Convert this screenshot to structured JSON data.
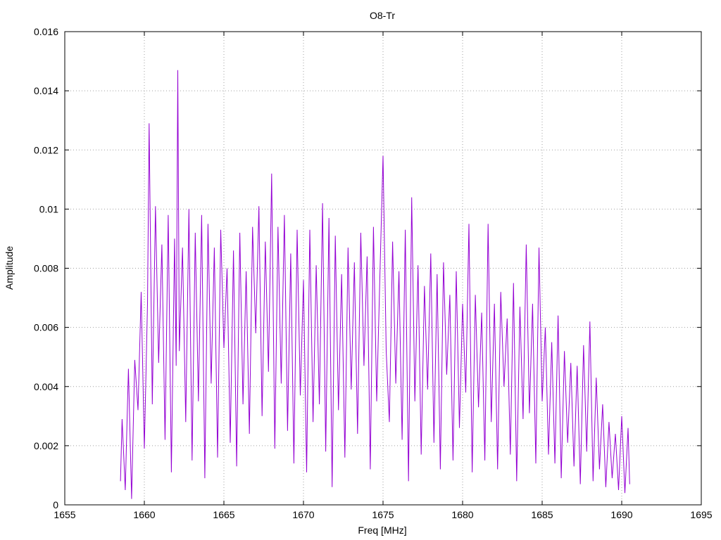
{
  "chart_data": {
    "type": "line",
    "title": "O8-Tr",
    "xlabel": "Freq [MHz]",
    "ylabel": "Amplitude",
    "xlim": [
      1655,
      1695
    ],
    "ylim": [
      0,
      0.016
    ],
    "x_ticks": [
      1655,
      1660,
      1665,
      1670,
      1675,
      1680,
      1685,
      1690,
      1695
    ],
    "x_tick_labels": [
      "1655",
      "1660",
      "1665",
      "1670",
      "1675",
      "1680",
      "1685",
      "1690",
      "1695"
    ],
    "y_ticks": [
      0,
      0.002,
      0.004,
      0.006,
      0.008,
      0.01,
      0.012,
      0.014,
      0.016
    ],
    "y_tick_labels": [
      "0",
      "0.002",
      "0.004",
      "0.006",
      "0.008",
      "0.01",
      "0.012",
      "0.014",
      "0.016"
    ],
    "grid": true,
    "series": [
      {
        "color": "#9400d3",
        "x": [
          1658.5,
          1658.6,
          1658.8,
          1659.0,
          1659.2,
          1659.4,
          1659.6,
          1659.8,
          1660.0,
          1660.2,
          1660.3,
          1660.5,
          1660.7,
          1660.9,
          1661.1,
          1661.3,
          1661.5,
          1661.7,
          1661.9,
          1662.0,
          1662.1,
          1662.2,
          1662.4,
          1662.6,
          1662.8,
          1663.0,
          1663.2,
          1663.4,
          1663.6,
          1663.8,
          1664.0,
          1664.2,
          1664.4,
          1664.6,
          1664.8,
          1665.0,
          1665.2,
          1665.4,
          1665.6,
          1665.8,
          1666.0,
          1666.2,
          1666.4,
          1666.6,
          1666.8,
          1667.0,
          1667.2,
          1667.4,
          1667.6,
          1667.8,
          1668.0,
          1668.2,
          1668.4,
          1668.6,
          1668.8,
          1669.0,
          1669.2,
          1669.4,
          1669.6,
          1669.8,
          1670.0,
          1670.2,
          1670.4,
          1670.6,
          1670.8,
          1671.0,
          1671.2,
          1671.4,
          1671.6,
          1671.8,
          1672.0,
          1672.2,
          1672.4,
          1672.6,
          1672.8,
          1673.0,
          1673.2,
          1673.4,
          1673.6,
          1673.8,
          1674.0,
          1674.2,
          1674.4,
          1674.6,
          1674.8,
          1675.0,
          1675.2,
          1675.4,
          1675.6,
          1675.8,
          1676.0,
          1676.2,
          1676.4,
          1676.6,
          1676.8,
          1677.0,
          1677.2,
          1677.4,
          1677.6,
          1677.8,
          1678.0,
          1678.2,
          1678.4,
          1678.6,
          1678.8,
          1679.0,
          1679.2,
          1679.4,
          1679.6,
          1679.8,
          1680.0,
          1680.2,
          1680.4,
          1680.6,
          1680.8,
          1681.0,
          1681.2,
          1681.4,
          1681.6,
          1681.8,
          1682.0,
          1682.2,
          1682.4,
          1682.6,
          1682.8,
          1683.0,
          1683.2,
          1683.4,
          1683.6,
          1683.8,
          1684.0,
          1684.2,
          1684.4,
          1684.6,
          1684.8,
          1685.0,
          1685.2,
          1685.4,
          1685.6,
          1685.8,
          1686.0,
          1686.2,
          1686.4,
          1686.6,
          1686.8,
          1687.0,
          1687.2,
          1687.4,
          1687.6,
          1687.8,
          1688.0,
          1688.2,
          1688.4,
          1688.6,
          1688.8,
          1689.0,
          1689.2,
          1689.4,
          1689.6,
          1689.8,
          1690.0,
          1690.2,
          1690.4,
          1690.5
        ],
        "y": [
          0.0008,
          0.0029,
          0.0005,
          0.0046,
          0.0002,
          0.0049,
          0.0032,
          0.0072,
          0.0019,
          0.0068,
          0.0129,
          0.0034,
          0.0101,
          0.0048,
          0.0088,
          0.0022,
          0.0098,
          0.0011,
          0.009,
          0.0047,
          0.0147,
          0.0052,
          0.0087,
          0.0028,
          0.01,
          0.0015,
          0.0092,
          0.0035,
          0.0098,
          0.0009,
          0.0095,
          0.0041,
          0.0087,
          0.0016,
          0.0093,
          0.0053,
          0.008,
          0.0021,
          0.0086,
          0.0013,
          0.0092,
          0.0034,
          0.0079,
          0.0024,
          0.0094,
          0.0058,
          0.0101,
          0.003,
          0.0089,
          0.0045,
          0.0112,
          0.0019,
          0.0094,
          0.0041,
          0.0098,
          0.0025,
          0.0085,
          0.0014,
          0.0093,
          0.0037,
          0.0076,
          0.0011,
          0.0093,
          0.0028,
          0.0081,
          0.0034,
          0.0102,
          0.0018,
          0.0097,
          0.0006,
          0.0091,
          0.0032,
          0.0078,
          0.0016,
          0.0087,
          0.0039,
          0.0082,
          0.0024,
          0.0092,
          0.0047,
          0.0084,
          0.0012,
          0.0094,
          0.0035,
          0.0077,
          0.0118,
          0.0052,
          0.0028,
          0.0089,
          0.0041,
          0.0079,
          0.0022,
          0.0093,
          0.0008,
          0.0104,
          0.0035,
          0.0081,
          0.0017,
          0.0074,
          0.0039,
          0.0085,
          0.0021,
          0.0078,
          0.0012,
          0.0082,
          0.0044,
          0.0071,
          0.0015,
          0.0079,
          0.0026,
          0.0068,
          0.0038,
          0.0095,
          0.0011,
          0.0071,
          0.0033,
          0.0065,
          0.0015,
          0.0095,
          0.0028,
          0.0068,
          0.0012,
          0.0072,
          0.004,
          0.0063,
          0.0017,
          0.0075,
          0.0008,
          0.0067,
          0.0029,
          0.0088,
          0.0031,
          0.0068,
          0.0014,
          0.0087,
          0.0035,
          0.006,
          0.0017,
          0.0055,
          0.0014,
          0.0064,
          0.0009,
          0.0052,
          0.0021,
          0.0048,
          0.0013,
          0.0047,
          0.0007,
          0.0054,
          0.0018,
          0.0062,
          0.0008,
          0.0043,
          0.0012,
          0.0034,
          0.0006,
          0.0028,
          0.0009,
          0.0024,
          0.0005,
          0.003,
          0.0004,
          0.0026,
          0.0007
        ]
      }
    ]
  }
}
